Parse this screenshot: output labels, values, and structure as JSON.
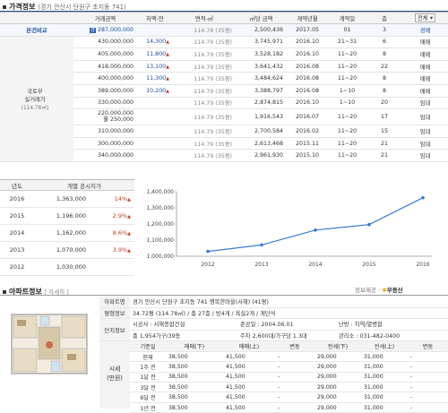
{
  "price_section": {
    "title": "가격정보",
    "subtitle": "(경기 안산시 단원구 초지동 741)",
    "columns": [
      "거래금액",
      "차액-만",
      "면적-㎡",
      "㎡당 금액",
      "계약년월",
      "계약일",
      "층"
    ],
    "filter_value": "전체",
    "compare_label": "본건비교",
    "compare_row": [
      "287,000,000",
      "",
      "114.78 (35평)",
      "2,500,436",
      "2017.05",
      "01",
      "3",
      "경매"
    ],
    "compare_badge": "경",
    "gov_label_1": "국토부",
    "gov_label_2": "실거래가",
    "gov_label_3": "(114.78㎡)",
    "rows": [
      [
        "430,000,000",
        "14,300",
        "114.79 (35평)",
        "3,745,971",
        "2016.10",
        "21~31",
        "6",
        "매매"
      ],
      [
        "405,000,000",
        "11,800",
        "114.79 (35평)",
        "3,528,182",
        "2016.10",
        "11~20",
        "8",
        "매매"
      ],
      [
        "418,000,000",
        "13,100",
        "114.79 (35평)",
        "3,641,432",
        "2016.08",
        "11~20",
        "22",
        "매매"
      ],
      [
        "400,000,000",
        "11,300",
        "114.79 (35평)",
        "3,484,624",
        "2016.08",
        "11~20",
        "8",
        "매매"
      ],
      [
        "389,000,000",
        "10,200",
        "114.79 (35평)",
        "3,388,797",
        "2016.08",
        "1~10",
        "8",
        "매매"
      ],
      [
        "330,000,000",
        "",
        "114.79 (35평)",
        "2,874,815",
        "2016.10",
        "1~10",
        "20",
        "임대"
      ],
      [
        "220,000,000\n월 250,000",
        "",
        "114.79 (35평)",
        "1,916,543",
        "2016.07",
        "11~20",
        "17",
        "임대"
      ],
      [
        "310,000,000",
        "",
        "114.79 (35평)",
        "2,700,584",
        "2016.02",
        "11~20",
        "15",
        "임대"
      ],
      [
        "300,000,000",
        "",
        "114.79 (35평)",
        "2,613,468",
        "2015.11",
        "11~20",
        "21",
        "임대"
      ],
      [
        "340,000,000",
        "",
        "114.79 (35평)",
        "2,961,930",
        "2015.10",
        "11~20",
        "21",
        "임대"
      ]
    ],
    "up_marker": "▲"
  },
  "gongsi": {
    "columns": [
      "년도",
      "개별 공시지가"
    ],
    "rows": [
      {
        "year": "2016",
        "price": "1,363,000",
        "change": "14%"
      },
      {
        "year": "2015",
        "price": "1,196,000",
        "change": "2.9%"
      },
      {
        "year": "2014",
        "price": "1,162,000",
        "change": "8.6%"
      },
      {
        "year": "2013",
        "price": "1,070,000",
        "change": "3.9%"
      },
      {
        "year": "2012",
        "price": "1,030,000",
        "change": ""
      }
    ]
  },
  "chart_data": {
    "type": "line",
    "x": [
      "2012",
      "2013",
      "2014",
      "2015",
      "2016"
    ],
    "series": [
      {
        "values": [
          1030000,
          1070000,
          1162000,
          1196000,
          1363000
        ]
      }
    ],
    "ylim": [
      1000000,
      1400000
    ],
    "yticks": [
      "1,400,000",
      "1,300,000",
      "1,200,000",
      "1,100,000",
      "1,000,000"
    ],
    "line_color": "#3a7bd5",
    "grid": false
  },
  "provider": {
    "label": "정보제공 :",
    "brand": "부동산"
  },
  "apt_section": {
    "title": "아파트정보",
    "detail_link": "[ 자세히 ]",
    "apt_name_label": "아파트명",
    "apt_name": "경기 안산시 단원구 초지동 741 행복한마을(서해) (41평)",
    "area_label": "평형정보",
    "area": "34.72평 (114.78㎡) / 총 27층 / 방4개 / 욕실2개 / 계단식",
    "complex_label": "단지정보",
    "builder": "시공사 : 서해종합건설",
    "built": "준공일 : 2004.06.01",
    "heating": "난방 : 지역/열병합",
    "households": "총 1,954가구/39동",
    "parking": "주차 2,600대/가구당 1.3대",
    "office": "관리소 : 031-482-0400",
    "market_label_1": "시세",
    "market_label_2": "(만원)",
    "market_columns": [
      "기준일",
      "매매(下)",
      "매매(上)",
      "변동",
      "전세(下)",
      "전세(上)",
      "변동"
    ],
    "market_rows": [
      [
        "현재",
        "38,500",
        "41,500",
        "-",
        "29,000",
        "31,000",
        "-"
      ],
      [
        "1주 전",
        "38,500",
        "41,500",
        "-",
        "29,000",
        "31,000",
        "-"
      ],
      [
        "1달 전",
        "38,500",
        "41,500",
        "-",
        "29,000",
        "31,000",
        "-"
      ],
      [
        "3달 전",
        "38,500",
        "41,500",
        "-",
        "29,000",
        "31,000",
        "-"
      ],
      [
        "6달 전",
        "38,500",
        "41,500",
        "-",
        "29,000",
        "31,000",
        "-"
      ],
      [
        "1년 전",
        "38,500",
        "41,500",
        "-",
        "29,000",
        "31,000",
        "-"
      ]
    ]
  }
}
